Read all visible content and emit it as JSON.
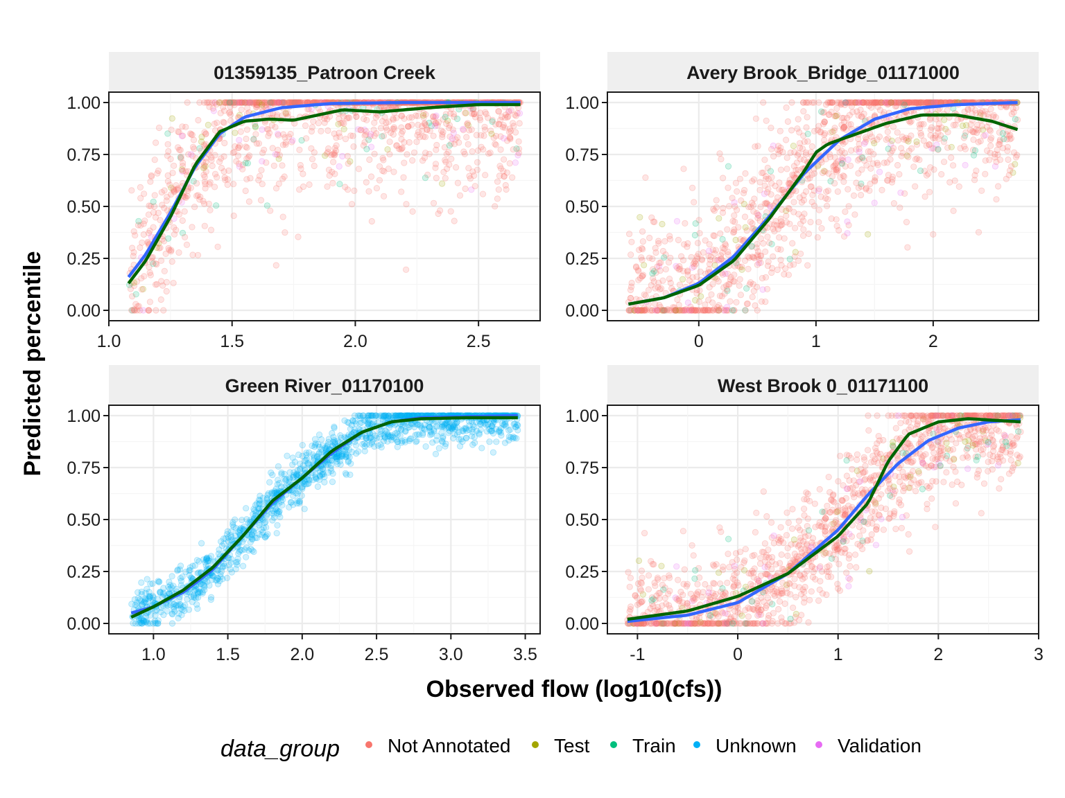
{
  "chart_data": {
    "type": "scatter",
    "facet_layout": "2x2",
    "xlabel": "Observed flow (log10(cfs))",
    "ylabel": "Predicted percentile",
    "y_ticks": [
      "0.00",
      "0.25",
      "0.50",
      "0.75",
      "1.00"
    ],
    "ylim": [
      -0.05,
      1.05
    ],
    "grid": true,
    "legend": {
      "title": "data_group",
      "position": "bottom",
      "entries": [
        {
          "name": "Not Annotated",
          "color": "#F8766D"
        },
        {
          "name": "Test",
          "color": "#A3A500"
        },
        {
          "name": "Train",
          "color": "#00BF7D"
        },
        {
          "name": "Unknown",
          "color": "#00B0F6"
        },
        {
          "name": "Validation",
          "color": "#E76BF3"
        }
      ]
    },
    "line_colors": {
      "blue": "#3366FF",
      "green": "#006400"
    },
    "panels": [
      {
        "title": "01359135_Patroon Creek",
        "xlim": [
          1.0,
          2.75
        ],
        "x_ticks": [
          1.0,
          1.5,
          2.0,
          2.5
        ],
        "x_tick_labels": [
          "1.0",
          "1.5",
          "2.0",
          "2.5"
        ],
        "x_range": [
          1.08,
          2.67
        ],
        "main_group": "Not Annotated",
        "spread": 0.2,
        "blue_curve": [
          [
            1.08,
            0.16
          ],
          [
            1.15,
            0.27
          ],
          [
            1.25,
            0.47
          ],
          [
            1.35,
            0.69
          ],
          [
            1.45,
            0.85
          ],
          [
            1.55,
            0.93
          ],
          [
            1.7,
            0.975
          ],
          [
            1.9,
            0.995
          ],
          [
            2.2,
            1.0
          ],
          [
            2.67,
            1.0
          ]
        ],
        "green_curve": [
          [
            1.08,
            0.13
          ],
          [
            1.15,
            0.24
          ],
          [
            1.25,
            0.45
          ],
          [
            1.35,
            0.7
          ],
          [
            1.45,
            0.86
          ],
          [
            1.55,
            0.91
          ],
          [
            1.65,
            0.92
          ],
          [
            1.75,
            0.915
          ],
          [
            1.85,
            0.94
          ],
          [
            1.95,
            0.965
          ],
          [
            2.1,
            0.955
          ],
          [
            2.3,
            0.975
          ],
          [
            2.5,
            0.99
          ],
          [
            2.67,
            0.99
          ]
        ]
      },
      {
        "title": "Avery Brook_Bridge_01171000",
        "xlim": [
          -0.78,
          2.9
        ],
        "x_ticks": [
          0,
          1,
          2
        ],
        "x_tick_labels": [
          "0",
          "1",
          "2"
        ],
        "x_range": [
          -0.6,
          2.72
        ],
        "main_group": "Not Annotated",
        "spread": 0.2,
        "blue_curve": [
          [
            -0.6,
            0.03
          ],
          [
            -0.3,
            0.06
          ],
          [
            0,
            0.13
          ],
          [
            0.3,
            0.26
          ],
          [
            0.6,
            0.45
          ],
          [
            0.9,
            0.66
          ],
          [
            1.2,
            0.82
          ],
          [
            1.5,
            0.92
          ],
          [
            1.8,
            0.97
          ],
          [
            2.2,
            0.99
          ],
          [
            2.72,
            1.0
          ]
        ],
        "green_curve": [
          [
            -0.6,
            0.03
          ],
          [
            -0.3,
            0.06
          ],
          [
            0,
            0.12
          ],
          [
            0.3,
            0.24
          ],
          [
            0.6,
            0.44
          ],
          [
            0.9,
            0.67
          ],
          [
            1.0,
            0.76
          ],
          [
            1.1,
            0.8
          ],
          [
            1.3,
            0.84
          ],
          [
            1.6,
            0.9
          ],
          [
            1.9,
            0.94
          ],
          [
            2.2,
            0.94
          ],
          [
            2.5,
            0.91
          ],
          [
            2.72,
            0.87
          ]
        ]
      },
      {
        "title": "Green River_01170100",
        "xlim": [
          0.7,
          3.6
        ],
        "x_ticks": [
          1.0,
          1.5,
          2.0,
          2.5,
          3.0,
          3.5
        ],
        "x_tick_labels": [
          "1.0",
          "1.5",
          "2.0",
          "2.5",
          "3.0",
          "3.5"
        ],
        "x_range": [
          0.85,
          3.45
        ],
        "main_group": "Unknown",
        "spread": 0.06,
        "blue_curve": [
          [
            0.85,
            0.05
          ],
          [
            1.0,
            0.08
          ],
          [
            1.2,
            0.15
          ],
          [
            1.4,
            0.26
          ],
          [
            1.6,
            0.42
          ],
          [
            1.8,
            0.58
          ],
          [
            2.0,
            0.7
          ],
          [
            2.2,
            0.82
          ],
          [
            2.4,
            0.92
          ],
          [
            2.6,
            0.97
          ],
          [
            2.8,
            0.99
          ],
          [
            3.1,
            0.995
          ],
          [
            3.45,
            1.0
          ]
        ],
        "green_curve": [
          [
            0.85,
            0.03
          ],
          [
            1.0,
            0.08
          ],
          [
            1.2,
            0.16
          ],
          [
            1.4,
            0.27
          ],
          [
            1.6,
            0.42
          ],
          [
            1.8,
            0.59
          ],
          [
            2.0,
            0.7
          ],
          [
            2.2,
            0.83
          ],
          [
            2.4,
            0.92
          ],
          [
            2.6,
            0.97
          ],
          [
            2.8,
            0.985
          ],
          [
            3.1,
            0.99
          ],
          [
            3.45,
            0.99
          ]
        ]
      },
      {
        "title": "West Brook 0_01171100",
        "xlim": [
          -1.3,
          3.0
        ],
        "x_ticks": [
          -1,
          0,
          1,
          2,
          3
        ],
        "x_tick_labels": [
          "-1",
          "0",
          "1",
          "2",
          "3"
        ],
        "x_range": [
          -1.1,
          2.82
        ],
        "main_group": "Not Annotated",
        "spread": 0.14,
        "blue_curve": [
          [
            -1.1,
            0.01
          ],
          [
            -0.5,
            0.04
          ],
          [
            0,
            0.1
          ],
          [
            0.5,
            0.24
          ],
          [
            1.0,
            0.45
          ],
          [
            1.3,
            0.62
          ],
          [
            1.6,
            0.77
          ],
          [
            1.9,
            0.88
          ],
          [
            2.2,
            0.94
          ],
          [
            2.5,
            0.97
          ],
          [
            2.82,
            0.98
          ]
        ],
        "green_curve": [
          [
            -1.1,
            0.02
          ],
          [
            -0.5,
            0.06
          ],
          [
            0,
            0.13
          ],
          [
            0.5,
            0.24
          ],
          [
            1.0,
            0.42
          ],
          [
            1.3,
            0.58
          ],
          [
            1.5,
            0.78
          ],
          [
            1.7,
            0.91
          ],
          [
            2.0,
            0.97
          ],
          [
            2.3,
            0.985
          ],
          [
            2.82,
            0.97
          ]
        ]
      }
    ]
  }
}
